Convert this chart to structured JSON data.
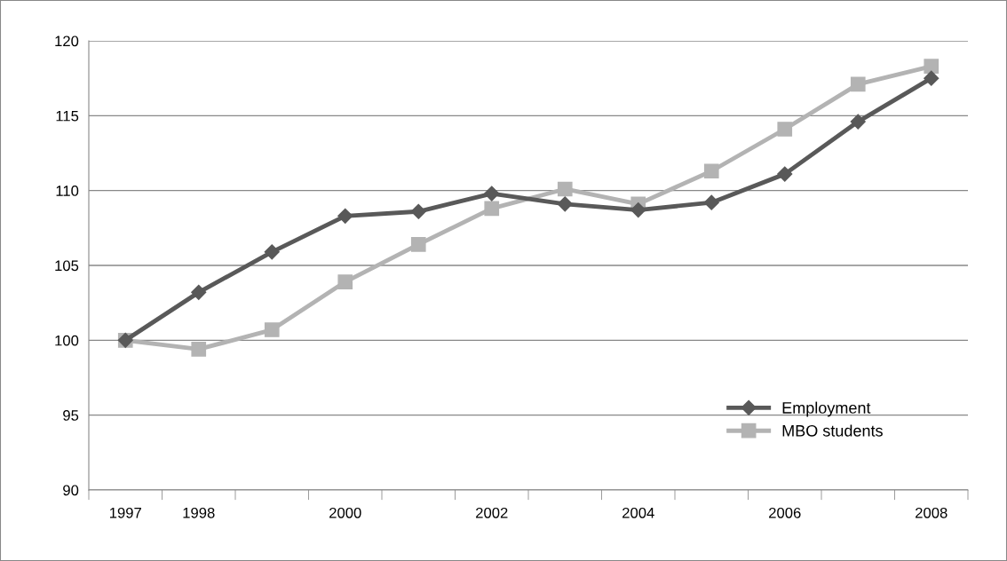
{
  "chart_data": {
    "type": "line",
    "categories": [
      "1997",
      "1998",
      null,
      "2000",
      null,
      "2002",
      null,
      "2004",
      null,
      "2006",
      null,
      "2008"
    ],
    "ylim": [
      90,
      120
    ],
    "yticks": [
      90,
      95,
      100,
      105,
      110,
      115,
      120
    ],
    "grid": "y",
    "legend": "bottom right",
    "line_style": "solid",
    "series": [
      {
        "name": "Employment",
        "color": "#595959",
        "marker": "diamond",
        "values": [
          100,
          103.2,
          105.9,
          108.3,
          108.6,
          109.8,
          109.1,
          108.7,
          109.2,
          111.1,
          114.6,
          117.5
        ]
      },
      {
        "name": "MBO students",
        "color": "#b3b3b3",
        "marker": "square",
        "values": [
          100,
          99.4,
          100.7,
          103.9,
          106.4,
          108.8,
          110.1,
          109.1,
          111.3,
          114.1,
          117.1,
          118.3
        ]
      }
    ]
  }
}
